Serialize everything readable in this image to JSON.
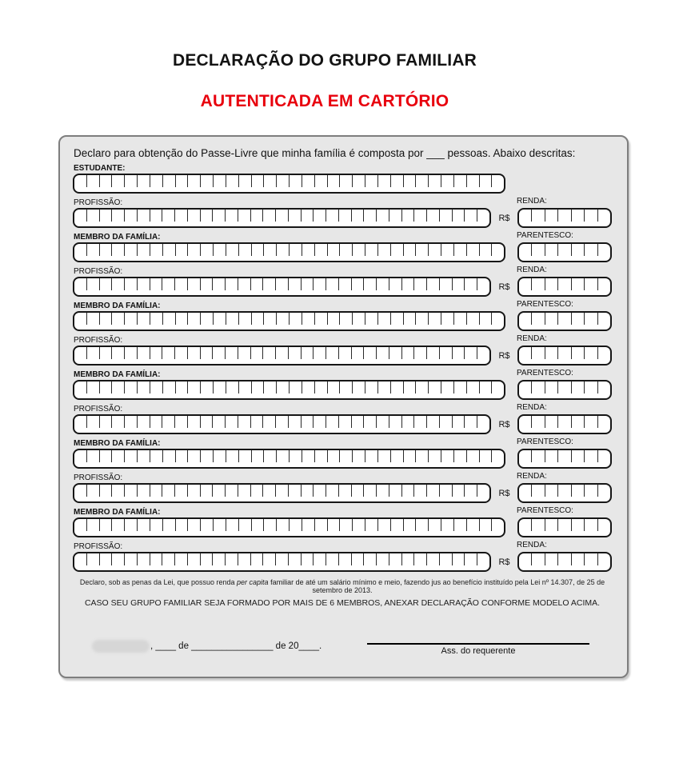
{
  "header": {
    "title": "DECLARAÇÃO DO GRUPO FAMILIAR",
    "subtitle": "AUTENTICADA EM CARTÓRIO"
  },
  "colors": {
    "subtitle_red": "#e8000d",
    "box_bg": "#e7e7e7"
  },
  "form": {
    "intro": "Declaro para obtenção do Passe-Livre que minha família é composta por ___ pessoas. Abaixo descritas:",
    "labels": {
      "student": "ESTUDANTE:",
      "member": "MEMBRO DA FAMÍLIA:",
      "profession": "PROFISSÃO:",
      "income": "RENDA:",
      "kinship": "PARENTESCO:",
      "currency": "R$"
    },
    "comb_cells": {
      "name": 34,
      "profession": 33,
      "small": 7
    },
    "sections": [
      {
        "type": "student"
      },
      {
        "type": "member"
      },
      {
        "type": "member"
      },
      {
        "type": "member"
      },
      {
        "type": "member"
      },
      {
        "type": "member"
      }
    ],
    "footer": {
      "declaration_prefix": "Declaro, sob as penas da Lei, que possuo renda ",
      "declaration_italic": "per capita",
      "declaration_suffix": " familiar de até um salário mínimo e meio, fazendo jus ao benefício instituído pela Lei nº 14.307, de 25 de setembro de 2013.",
      "warning": "CASO SEU GRUPO FAMILIAR SEJA FORMADO POR MAIS DE 6 MEMBROS, ANEXAR DECLARAÇÃO CONFORME MODELO ACIMA.",
      "date_line": ", ____ de ________________ de 20____.",
      "signature_caption": "Ass. do requerente"
    }
  }
}
